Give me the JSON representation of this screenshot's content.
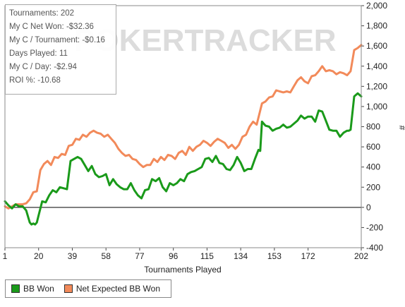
{
  "watermark": "POKERTRACKER",
  "stats": [
    "Tournaments: 202",
    "My C Net Won: -$32.36",
    "My C / Tournament: -$0.16",
    "Days Played: 11",
    "My C / Day: -$2.94",
    "ROI %: -10.68"
  ],
  "legend": [
    {
      "label": "BB Won",
      "color": "#1a9a1a"
    },
    {
      "label": "Net Expected BB Won",
      "color": "#f28a5a"
    }
  ],
  "chart_data": {
    "type": "line",
    "xlabel": "Tournaments Played",
    "ylabel": "#",
    "xlim": [
      1,
      202
    ],
    "ylim": [
      -400,
      2000
    ],
    "x_ticks": [
      1,
      20,
      39,
      58,
      77,
      96,
      115,
      134,
      153,
      172,
      202
    ],
    "y_ticks": [
      -400,
      -200,
      0,
      200,
      400,
      600,
      800,
      1000,
      1200,
      1400,
      1600,
      1800,
      2000
    ],
    "y_tick_labels": [
      "-400",
      "-200",
      "0",
      "200",
      "400",
      "600",
      "800",
      "1,000",
      "1,200",
      "1,400",
      "1,600",
      "1,800",
      "2,000"
    ],
    "series": [
      {
        "name": "BB Won",
        "color": "#1a9a1a",
        "x": [
          1,
          3,
          5,
          7,
          9,
          11,
          13,
          15,
          16,
          17,
          18,
          19,
          20,
          22,
          24,
          26,
          28,
          30,
          32,
          34,
          36,
          38,
          40,
          42,
          44,
          46,
          48,
          50,
          52,
          54,
          56,
          58,
          60,
          62,
          64,
          66,
          68,
          70,
          72,
          74,
          76,
          78,
          80,
          82,
          84,
          86,
          88,
          90,
          92,
          94,
          96,
          98,
          100,
          102,
          104,
          106,
          108,
          110,
          112,
          114,
          116,
          118,
          120,
          122,
          124,
          126,
          128,
          130,
          132,
          134,
          136,
          138,
          140,
          142,
          144,
          145,
          146,
          148,
          150,
          152,
          154,
          156,
          158,
          160,
          162,
          164,
          166,
          168,
          170,
          172,
          174,
          176,
          178,
          180,
          182,
          184,
          186,
          188,
          190,
          192,
          194,
          195,
          196,
          198,
          200,
          202
        ],
        "y": [
          60,
          20,
          -10,
          30,
          10,
          10,
          -30,
          -150,
          -170,
          -160,
          -170,
          -150,
          -80,
          60,
          50,
          120,
          170,
          150,
          200,
          190,
          180,
          460,
          480,
          500,
          480,
          420,
          360,
          410,
          330,
          300,
          310,
          330,
          220,
          280,
          230,
          200,
          180,
          180,
          240,
          170,
          120,
          90,
          170,
          180,
          280,
          260,
          290,
          200,
          160,
          240,
          220,
          240,
          280,
          260,
          330,
          350,
          360,
          380,
          400,
          480,
          490,
          450,
          510,
          440,
          430,
          380,
          370,
          420,
          500,
          440,
          360,
          380,
          380,
          480,
          570,
          560,
          850,
          810,
          800,
          760,
          780,
          790,
          820,
          790,
          800,
          830,
          860,
          910,
          880,
          900,
          900,
          850,
          960,
          950,
          860,
          770,
          760,
          760,
          700,
          740,
          760,
          760,
          770,
          1100,
          1130,
          1100
        ]
      },
      {
        "name": "Net Expected BB Won",
        "color": "#f28a5a",
        "x": [
          1,
          3,
          5,
          7,
          9,
          11,
          13,
          15,
          17,
          19,
          21,
          23,
          25,
          27,
          29,
          31,
          33,
          35,
          37,
          39,
          41,
          43,
          45,
          47,
          49,
          51,
          53,
          55,
          57,
          59,
          61,
          63,
          65,
          67,
          69,
          71,
          73,
          75,
          77,
          79,
          81,
          83,
          85,
          87,
          89,
          91,
          93,
          95,
          97,
          99,
          101,
          103,
          105,
          107,
          109,
          111,
          113,
          115,
          117,
          119,
          121,
          123,
          125,
          127,
          129,
          131,
          133,
          135,
          137,
          139,
          141,
          143,
          145,
          146,
          148,
          150,
          152,
          154,
          156,
          158,
          160,
          162,
          164,
          166,
          168,
          170,
          172,
          174,
          176,
          178,
          180,
          182,
          184,
          186,
          188,
          190,
          192,
          194,
          196,
          198,
          200,
          202
        ],
        "y": [
          10,
          -10,
          10,
          30,
          30,
          30,
          40,
          80,
          150,
          160,
          370,
          430,
          460,
          420,
          500,
          490,
          530,
          520,
          610,
          620,
          680,
          670,
          720,
          700,
          740,
          760,
          740,
          730,
          700,
          720,
          680,
          640,
          580,
          540,
          510,
          520,
          480,
          470,
          430,
          400,
          420,
          420,
          480,
          450,
          500,
          470,
          520,
          510,
          480,
          540,
          560,
          520,
          600,
          560,
          600,
          620,
          660,
          640,
          610,
          650,
          680,
          660,
          640,
          590,
          620,
          580,
          620,
          700,
          720,
          800,
          850,
          820,
          960,
          1030,
          1050,
          1090,
          1100,
          1160,
          1150,
          1140,
          1150,
          1140,
          1200,
          1260,
          1290,
          1250,
          1230,
          1300,
          1310,
          1350,
          1400,
          1350,
          1360,
          1350,
          1320,
          1340,
          1330,
          1310,
          1350,
          1560,
          1580,
          1610
        ]
      }
    ]
  }
}
